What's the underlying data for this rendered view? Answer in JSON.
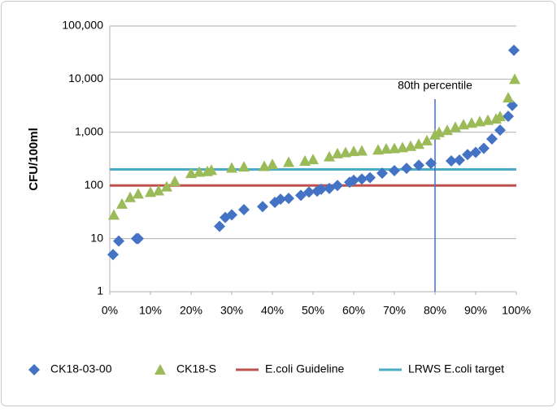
{
  "chart_data": {
    "type": "scatter",
    "y_label": "CFU/100ml",
    "log_y": true,
    "grid": true,
    "xlim": [
      0,
      100
    ],
    "xticks": [
      {
        "value": 0,
        "label": "0%"
      },
      {
        "value": 10,
        "label": "10%"
      },
      {
        "value": 20,
        "label": "20%"
      },
      {
        "value": 30,
        "label": "30%"
      },
      {
        "value": 40,
        "label": "40%"
      },
      {
        "value": 50,
        "label": "50%"
      },
      {
        "value": 60,
        "label": "60%"
      },
      {
        "value": 70,
        "label": "70%"
      },
      {
        "value": 80,
        "label": "80%"
      },
      {
        "value": 90,
        "label": "90%"
      },
      {
        "value": 100,
        "label": "100%"
      }
    ],
    "ylim": [
      1,
      100000
    ],
    "yticks": [
      1,
      10,
      100,
      {
        "value": 1000,
        "label": "1,000"
      },
      {
        "value": 10000,
        "label": "10,000"
      },
      {
        "value": 100000,
        "label": "100,000"
      }
    ],
    "series": [
      {
        "name": "CK18-03-00",
        "color": "#4472c4",
        "marker": "diamond",
        "x": [
          0.8,
          2.2,
          6.6,
          7,
          27,
          28.4,
          30,
          33,
          37.6,
          40.6,
          42,
          44,
          47,
          49,
          51,
          52,
          54,
          56,
          59,
          60,
          62,
          64,
          67,
          70,
          73,
          76,
          79,
          84,
          86,
          88,
          90,
          92,
          94,
          96,
          98,
          99,
          99.4
        ],
        "values": [
          5,
          9,
          10,
          10,
          17,
          25,
          28,
          35,
          40,
          48,
          55,
          57,
          65,
          75,
          78,
          85,
          88,
          100,
          115,
          125,
          132,
          140,
          170,
          190,
          210,
          240,
          260,
          290,
          300,
          380,
          420,
          500,
          750,
          1100,
          2000,
          3200,
          35000
        ]
      },
      {
        "name": "CK18-S",
        "color": "#9bbb59",
        "marker": "triangle",
        "x": [
          1,
          3,
          5,
          7,
          10,
          12,
          14,
          16,
          20,
          22,
          24,
          25,
          30,
          33,
          38,
          40,
          44,
          48,
          50,
          54,
          56,
          58,
          60,
          62,
          66,
          68,
          70,
          72,
          74,
          76,
          78,
          80,
          81,
          83,
          85,
          87,
          89,
          91,
          93,
          95,
          96,
          98,
          99.6
        ],
        "values": [
          28,
          45,
          60,
          70,
          75,
          80,
          95,
          120,
          170,
          180,
          185,
          195,
          215,
          225,
          230,
          250,
          275,
          290,
          310,
          350,
          400,
          420,
          440,
          450,
          470,
          490,
          500,
          520,
          550,
          600,
          700,
          900,
          1000,
          1100,
          1250,
          1400,
          1500,
          1600,
          1700,
          1800,
          2000,
          4500,
          10000
        ]
      }
    ],
    "reference_lines": [
      {
        "name": "E.coli Guideline",
        "color": "#c0504d",
        "value": 100
      },
      {
        "name": "LRWS E.coli target",
        "color": "#4bacc6",
        "value": 200
      }
    ],
    "percentile_line": {
      "value": 80,
      "label": "80th percentile",
      "color": "#4472c4"
    }
  }
}
